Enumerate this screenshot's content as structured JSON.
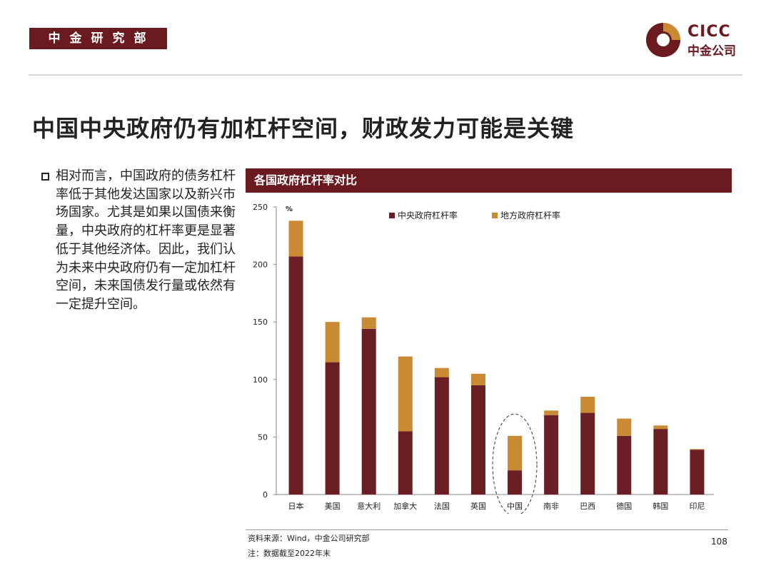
{
  "header": {
    "department": "中金研究部",
    "logo_text_en": "CICC",
    "logo_text_cn": "中金公司"
  },
  "title": "中国中央政府仍有加杠杆空间，财政发力可能是关键",
  "body_text": "相对而言，中国政府的债务杠杆率低于其他发达国家以及新兴市场国家。尤其是如果以国债来衡量，中央政府的杠杆率更是显著低于其他经济体。因此，我们认为未来中央政府仍有一定加杠杆空间，未来国债发行量或依然有一定提升空间。",
  "chart_title": "各国政府杠杆率对比",
  "colors": {
    "brand": "#6b1a1f",
    "central": "#6b1f24",
    "local": "#c98a33"
  },
  "chart_data": {
    "type": "bar",
    "stacked": true,
    "title": "各国政府杠杆率对比",
    "ylabel": "%",
    "ylim": [
      0,
      250
    ],
    "yticks": [
      0,
      50,
      100,
      150,
      200,
      250
    ],
    "categories": [
      "日本",
      "美国",
      "意大利",
      "加拿大",
      "法国",
      "英国",
      "中国",
      "南非",
      "巴西",
      "德国",
      "韩国",
      "印尼"
    ],
    "series": [
      {
        "name": "中央政府杠杆率",
        "values": [
          207,
          115,
          144,
          55,
          102,
          95,
          21,
          69,
          71,
          51,
          57,
          39
        ]
      },
      {
        "name": "地方政府杠杆率",
        "values": [
          31,
          35,
          10,
          65,
          8,
          10,
          30,
          4,
          14,
          15,
          3,
          0.5
        ]
      }
    ],
    "legend_position": "top",
    "annotation": {
      "type": "dashed-ellipse",
      "target": "中国"
    }
  },
  "footer": {
    "source": "资料来源：Wind，中金公司研究部",
    "note": "注：数据截至2022年末",
    "page_number": "108"
  }
}
